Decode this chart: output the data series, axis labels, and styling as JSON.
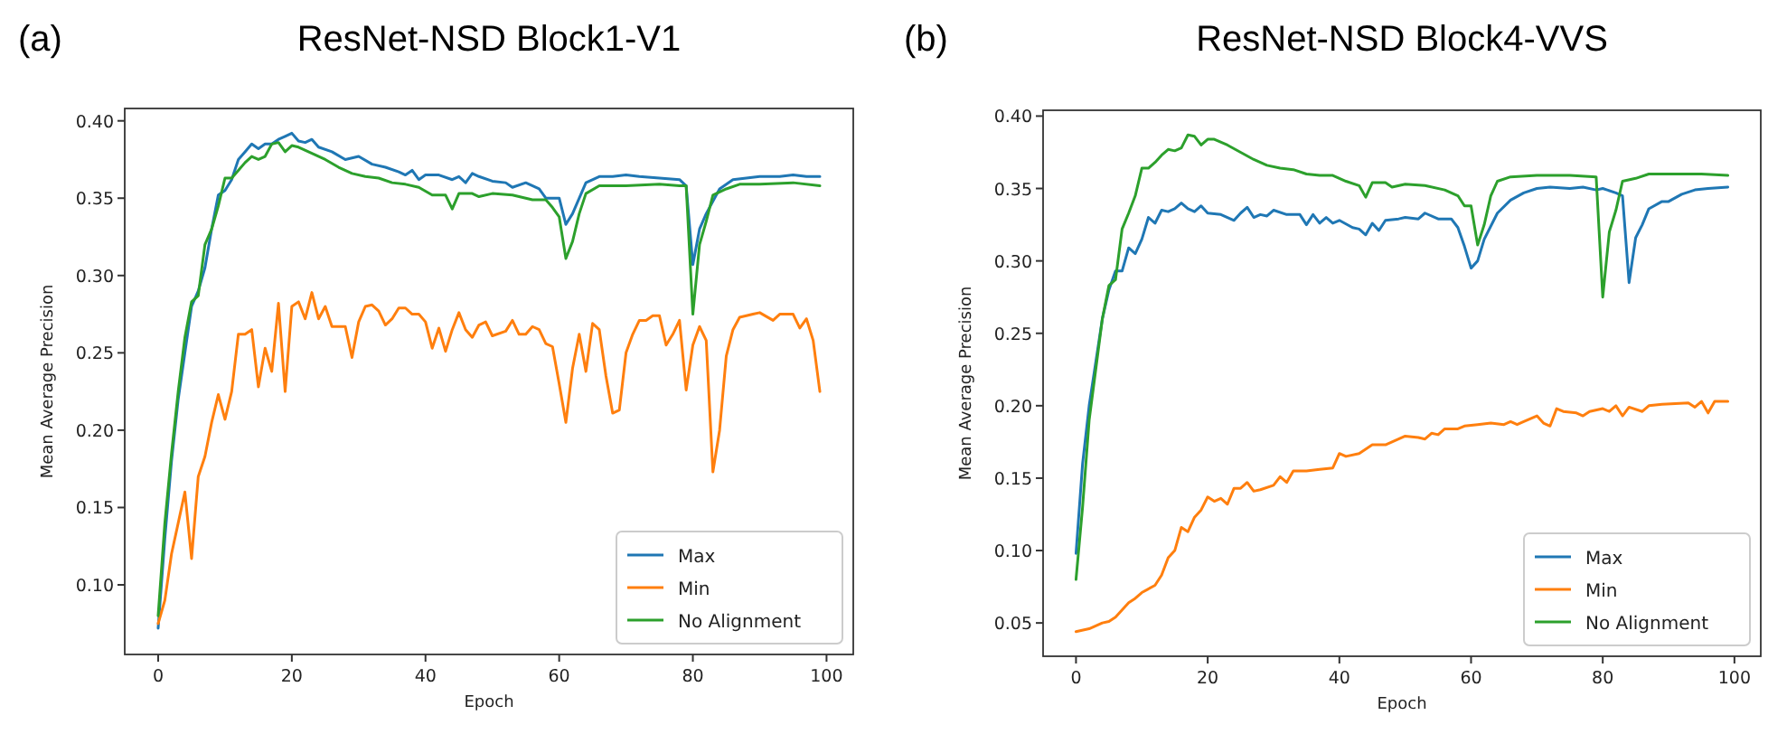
{
  "chart_data": [
    {
      "type": "line",
      "title": "ResNet-NSD Block1-V1",
      "annotations": [
        "(a)"
      ],
      "xlabel": "Epoch",
      "ylabel": "Mean Average Precision",
      "xlim": [
        -5,
        104
      ],
      "ylim": [
        0.055,
        0.408
      ],
      "xticks": [
        0,
        20,
        40,
        60,
        80,
        100
      ],
      "yticks": [
        {
          "value": 0.1,
          "label": "0.10"
        },
        {
          "value": 0.15,
          "label": "0.15"
        },
        {
          "value": 0.2,
          "label": "0.20"
        },
        {
          "value": 0.25,
          "label": "0.25"
        },
        {
          "value": 0.3,
          "label": "0.30"
        },
        {
          "value": 0.35,
          "label": "0.35"
        },
        {
          "value": 0.4,
          "label": "0.40"
        }
      ],
      "legend": "bottom right",
      "grid": false,
      "line_style": "solid",
      "marker": "none",
      "series": [
        {
          "name": "Max",
          "color": "#1f77b4",
          "x": [
            0,
            1,
            2,
            3,
            4,
            5,
            6,
            7,
            8,
            9,
            10,
            11,
            12,
            13,
            14,
            15,
            16,
            17,
            18,
            19,
            20,
            21,
            22,
            23,
            24,
            26,
            28,
            30,
            32,
            34,
            36,
            37,
            38,
            39,
            40,
            42,
            44,
            45,
            46,
            47,
            48,
            50,
            52,
            53,
            55,
            57,
            58,
            60,
            61,
            62,
            64,
            66,
            68,
            70,
            72,
            75,
            78,
            79,
            80,
            81,
            82,
            84,
            86,
            88,
            90,
            93,
            95,
            97,
            99
          ],
          "values": [
            0.072,
            0.13,
            0.18,
            0.22,
            0.25,
            0.28,
            0.29,
            0.305,
            0.33,
            0.352,
            0.355,
            0.362,
            0.375,
            0.38,
            0.385,
            0.382,
            0.385,
            0.385,
            0.388,
            0.39,
            0.392,
            0.387,
            0.386,
            0.388,
            0.383,
            0.38,
            0.375,
            0.377,
            0.372,
            0.37,
            0.367,
            0.365,
            0.368,
            0.362,
            0.365,
            0.365,
            0.362,
            0.364,
            0.36,
            0.366,
            0.364,
            0.361,
            0.36,
            0.357,
            0.36,
            0.356,
            0.35,
            0.35,
            0.333,
            0.34,
            0.36,
            0.364,
            0.364,
            0.365,
            0.364,
            0.363,
            0.362,
            0.358,
            0.307,
            0.33,
            0.34,
            0.356,
            0.362,
            0.363,
            0.364,
            0.364,
            0.365,
            0.364,
            0.364
          ]
        },
        {
          "name": "Min",
          "color": "#ff7f0e",
          "x": [
            0,
            1,
            2,
            3,
            4,
            5,
            6,
            7,
            8,
            9,
            10,
            11,
            12,
            13,
            14,
            15,
            16,
            17,
            18,
            19,
            20,
            21,
            22,
            23,
            24,
            25,
            26,
            27,
            28,
            29,
            30,
            31,
            32,
            33,
            34,
            35,
            36,
            37,
            38,
            39,
            40,
            41,
            42,
            43,
            44,
            45,
            46,
            47,
            48,
            49,
            50,
            52,
            53,
            54,
            55,
            56,
            57,
            58,
            59,
            60,
            61,
            62,
            63,
            64,
            65,
            66,
            67,
            68,
            69,
            70,
            71,
            72,
            73,
            74,
            75,
            76,
            77,
            78,
            79,
            80,
            81,
            82,
            83,
            84,
            85,
            86,
            87,
            89,
            90,
            92,
            93,
            95,
            96,
            97,
            98,
            99
          ],
          "values": [
            0.075,
            0.09,
            0.12,
            0.14,
            0.16,
            0.117,
            0.17,
            0.183,
            0.205,
            0.223,
            0.207,
            0.225,
            0.262,
            0.262,
            0.265,
            0.228,
            0.253,
            0.238,
            0.282,
            0.225,
            0.28,
            0.283,
            0.272,
            0.289,
            0.272,
            0.28,
            0.267,
            0.267,
            0.267,
            0.247,
            0.27,
            0.28,
            0.281,
            0.277,
            0.268,
            0.272,
            0.279,
            0.279,
            0.275,
            0.275,
            0.27,
            0.253,
            0.266,
            0.251,
            0.265,
            0.276,
            0.265,
            0.26,
            0.268,
            0.27,
            0.261,
            0.264,
            0.271,
            0.262,
            0.262,
            0.267,
            0.265,
            0.256,
            0.254,
            0.23,
            0.205,
            0.24,
            0.262,
            0.238,
            0.269,
            0.265,
            0.235,
            0.211,
            0.213,
            0.25,
            0.262,
            0.271,
            0.271,
            0.274,
            0.274,
            0.255,
            0.262,
            0.271,
            0.226,
            0.255,
            0.267,
            0.258,
            0.173,
            0.2,
            0.248,
            0.265,
            0.273,
            0.275,
            0.276,
            0.271,
            0.275,
            0.275,
            0.266,
            0.272,
            0.258,
            0.225
          ]
        },
        {
          "name": "No Alignment",
          "color": "#2ca02c",
          "x": [
            0,
            1,
            2,
            3,
            4,
            5,
            6,
            7,
            8,
            9,
            10,
            11,
            12,
            13,
            14,
            15,
            16,
            17,
            18,
            19,
            20,
            21,
            23,
            25,
            27,
            29,
            31,
            33,
            35,
            37,
            39,
            41,
            43,
            44,
            45,
            47,
            48,
            50,
            53,
            56,
            58,
            59,
            60,
            61,
            62,
            63,
            64,
            66,
            70,
            75,
            78,
            79,
            80,
            81,
            82,
            83,
            85,
            87,
            90,
            95,
            99
          ],
          "values": [
            0.08,
            0.14,
            0.185,
            0.225,
            0.26,
            0.283,
            0.287,
            0.32,
            0.33,
            0.345,
            0.363,
            0.363,
            0.368,
            0.373,
            0.377,
            0.375,
            0.377,
            0.385,
            0.386,
            0.38,
            0.384,
            0.383,
            0.379,
            0.375,
            0.37,
            0.366,
            0.364,
            0.363,
            0.36,
            0.359,
            0.357,
            0.352,
            0.352,
            0.343,
            0.353,
            0.353,
            0.351,
            0.353,
            0.352,
            0.349,
            0.349,
            0.344,
            0.338,
            0.311,
            0.322,
            0.34,
            0.353,
            0.358,
            0.358,
            0.359,
            0.358,
            0.358,
            0.275,
            0.32,
            0.335,
            0.352,
            0.356,
            0.359,
            0.359,
            0.36,
            0.358
          ]
        }
      ]
    },
    {
      "type": "line",
      "title": "ResNet-NSD Block4-VVS",
      "annotations": [
        "(b)"
      ],
      "xlabel": "Epoch",
      "ylabel": "Mean Average Precision",
      "xlim": [
        -5,
        104
      ],
      "ylim": [
        0.027,
        0.404
      ],
      "xticks": [
        0,
        20,
        40,
        60,
        80,
        100
      ],
      "yticks": [
        {
          "value": 0.05,
          "label": "0.05"
        },
        {
          "value": 0.1,
          "label": "0.10"
        },
        {
          "value": 0.15,
          "label": "0.15"
        },
        {
          "value": 0.2,
          "label": "0.20"
        },
        {
          "value": 0.25,
          "label": "0.25"
        },
        {
          "value": 0.3,
          "label": "0.30"
        },
        {
          "value": 0.35,
          "label": "0.35"
        },
        {
          "value": 0.4,
          "label": "0.40"
        }
      ],
      "legend": "bottom right",
      "grid": false,
      "line_style": "solid",
      "marker": "none",
      "series": [
        {
          "name": "Max",
          "color": "#1f77b4",
          "x": [
            0,
            1,
            2,
            3,
            4,
            5,
            6,
            7,
            8,
            9,
            10,
            11,
            12,
            13,
            14,
            15,
            16,
            17,
            18,
            19,
            20,
            22,
            24,
            25,
            26,
            27,
            28,
            29,
            30,
            32,
            34,
            35,
            36,
            37,
            38,
            39,
            40,
            42,
            43,
            44,
            45,
            46,
            47,
            49,
            50,
            52,
            53,
            55,
            57,
            58,
            59,
            60,
            61,
            62,
            64,
            66,
            68,
            70,
            72,
            75,
            77,
            79,
            80,
            82,
            83,
            84,
            85,
            86,
            87,
            89,
            90,
            92,
            94,
            96,
            99
          ],
          "values": [
            0.098,
            0.16,
            0.2,
            0.23,
            0.26,
            0.28,
            0.293,
            0.293,
            0.309,
            0.305,
            0.315,
            0.33,
            0.326,
            0.335,
            0.334,
            0.336,
            0.34,
            0.336,
            0.334,
            0.338,
            0.333,
            0.332,
            0.328,
            0.333,
            0.337,
            0.33,
            0.332,
            0.331,
            0.335,
            0.332,
            0.332,
            0.325,
            0.332,
            0.326,
            0.33,
            0.326,
            0.328,
            0.323,
            0.322,
            0.318,
            0.326,
            0.321,
            0.328,
            0.329,
            0.33,
            0.329,
            0.333,
            0.329,
            0.329,
            0.323,
            0.31,
            0.295,
            0.3,
            0.315,
            0.333,
            0.342,
            0.347,
            0.35,
            0.351,
            0.35,
            0.351,
            0.349,
            0.35,
            0.347,
            0.345,
            0.285,
            0.316,
            0.325,
            0.336,
            0.341,
            0.341,
            0.346,
            0.349,
            0.35,
            0.351
          ]
        },
        {
          "name": "Min",
          "color": "#ff7f0e",
          "x": [
            0,
            2,
            3,
            4,
            5,
            6,
            7,
            8,
            9,
            10,
            12,
            13,
            14,
            15,
            16,
            17,
            18,
            19,
            20,
            21,
            22,
            23,
            24,
            25,
            26,
            27,
            28,
            30,
            31,
            32,
            33,
            35,
            37,
            39,
            40,
            41,
            43,
            45,
            47,
            48,
            50,
            52,
            53,
            54,
            55,
            56,
            58,
            59,
            61,
            63,
            65,
            66,
            67,
            68,
            70,
            71,
            72,
            73,
            74,
            76,
            77,
            78,
            80,
            81,
            82,
            83,
            84,
            86,
            87,
            89,
            93,
            94,
            95,
            96,
            97,
            99
          ],
          "values": [
            0.044,
            0.046,
            0.048,
            0.05,
            0.051,
            0.054,
            0.059,
            0.064,
            0.067,
            0.071,
            0.076,
            0.083,
            0.095,
            0.1,
            0.116,
            0.113,
            0.123,
            0.128,
            0.137,
            0.134,
            0.136,
            0.132,
            0.143,
            0.143,
            0.147,
            0.141,
            0.142,
            0.145,
            0.151,
            0.147,
            0.155,
            0.155,
            0.156,
            0.157,
            0.167,
            0.165,
            0.167,
            0.173,
            0.173,
            0.175,
            0.179,
            0.178,
            0.177,
            0.181,
            0.18,
            0.184,
            0.184,
            0.186,
            0.187,
            0.188,
            0.187,
            0.189,
            0.187,
            0.189,
            0.193,
            0.188,
            0.186,
            0.198,
            0.196,
            0.195,
            0.193,
            0.196,
            0.198,
            0.196,
            0.2,
            0.193,
            0.199,
            0.196,
            0.2,
            0.201,
            0.202,
            0.199,
            0.203,
            0.195,
            0.203,
            0.203
          ]
        },
        {
          "name": "No Alignment",
          "color": "#2ca02c",
          "x": [
            0,
            1,
            2,
            3,
            4,
            5,
            6,
            7,
            8,
            9,
            10,
            11,
            12,
            13,
            14,
            15,
            16,
            17,
            18,
            19,
            20,
            21,
            23,
            25,
            27,
            29,
            31,
            33,
            35,
            37,
            39,
            41,
            43,
            44,
            45,
            47,
            48,
            50,
            53,
            56,
            58,
            59,
            60,
            61,
            62,
            63,
            64,
            66,
            70,
            75,
            79,
            80,
            81,
            82,
            83,
            85,
            87,
            90,
            95,
            99
          ],
          "values": [
            0.08,
            0.13,
            0.19,
            0.225,
            0.26,
            0.283,
            0.287,
            0.322,
            0.333,
            0.345,
            0.364,
            0.364,
            0.368,
            0.373,
            0.377,
            0.376,
            0.378,
            0.387,
            0.386,
            0.38,
            0.384,
            0.384,
            0.38,
            0.375,
            0.37,
            0.366,
            0.364,
            0.363,
            0.36,
            0.359,
            0.359,
            0.355,
            0.352,
            0.344,
            0.354,
            0.354,
            0.351,
            0.353,
            0.352,
            0.349,
            0.345,
            0.338,
            0.338,
            0.311,
            0.325,
            0.345,
            0.355,
            0.358,
            0.359,
            0.359,
            0.358,
            0.275,
            0.32,
            0.335,
            0.355,
            0.357,
            0.36,
            0.36,
            0.36,
            0.359
          ]
        }
      ]
    }
  ]
}
